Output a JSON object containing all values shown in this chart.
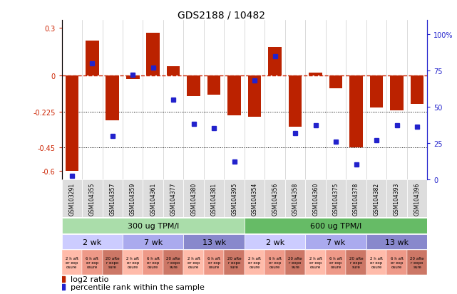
{
  "title": "GDS2188 / 10482",
  "samples": [
    "GSM103291",
    "GSM104355",
    "GSM104357",
    "GSM104359",
    "GSM104361",
    "GSM104377",
    "GSM104380",
    "GSM104381",
    "GSM104395",
    "GSM104354",
    "GSM104356",
    "GSM104358",
    "GSM104360",
    "GSM104375",
    "GSM104378",
    "GSM104382",
    "GSM104393",
    "GSM104396"
  ],
  "log2_ratio": [
    -0.6,
    0.22,
    -0.28,
    -0.02,
    0.27,
    0.06,
    -0.13,
    -0.12,
    -0.25,
    -0.26,
    0.18,
    -0.32,
    0.02,
    -0.08,
    -0.45,
    -0.2,
    -0.22,
    -0.18
  ],
  "percentile": [
    2,
    80,
    30,
    72,
    77,
    55,
    38,
    35,
    12,
    68,
    85,
    32,
    37,
    26,
    10,
    27,
    37,
    36
  ],
  "dose_groups": [
    {
      "label": "300 ug TPM/l",
      "start": 0,
      "end": 9,
      "color": "#aaddaa"
    },
    {
      "label": "600 ug TPM/l",
      "start": 9,
      "end": 18,
      "color": "#66bb66"
    }
  ],
  "time_groups": [
    {
      "label": "2 wk",
      "start": 0,
      "end": 3,
      "color": "#ccccff"
    },
    {
      "label": "7 wk",
      "start": 3,
      "end": 6,
      "color": "#aaaaee"
    },
    {
      "label": "13 wk",
      "start": 6,
      "end": 9,
      "color": "#8888cc"
    },
    {
      "label": "2 wk",
      "start": 9,
      "end": 12,
      "color": "#ccccff"
    },
    {
      "label": "7 wk",
      "start": 12,
      "end": 15,
      "color": "#aaaaee"
    },
    {
      "label": "13 wk",
      "start": 15,
      "end": 18,
      "color": "#8888cc"
    }
  ],
  "protocol_colors": [
    "#ffbbaa",
    "#ee9988",
    "#cc7766"
  ],
  "protocol_labels": [
    "2 h aft\ner exp\nosure",
    "6 h aft\ner exp\nosure",
    "20 afte\nr expo\nsure"
  ],
  "protocol_pattern": [
    0,
    1,
    2,
    0,
    1,
    2,
    0,
    1,
    2,
    0,
    1,
    2,
    0,
    1,
    2,
    0,
    1,
    2
  ],
  "bar_color": "#bb2200",
  "dot_color": "#2222cc",
  "ylim_left": [
    -0.65,
    0.35
  ],
  "ylim_right": [
    0,
    110
  ],
  "background_color": "#ffffff"
}
